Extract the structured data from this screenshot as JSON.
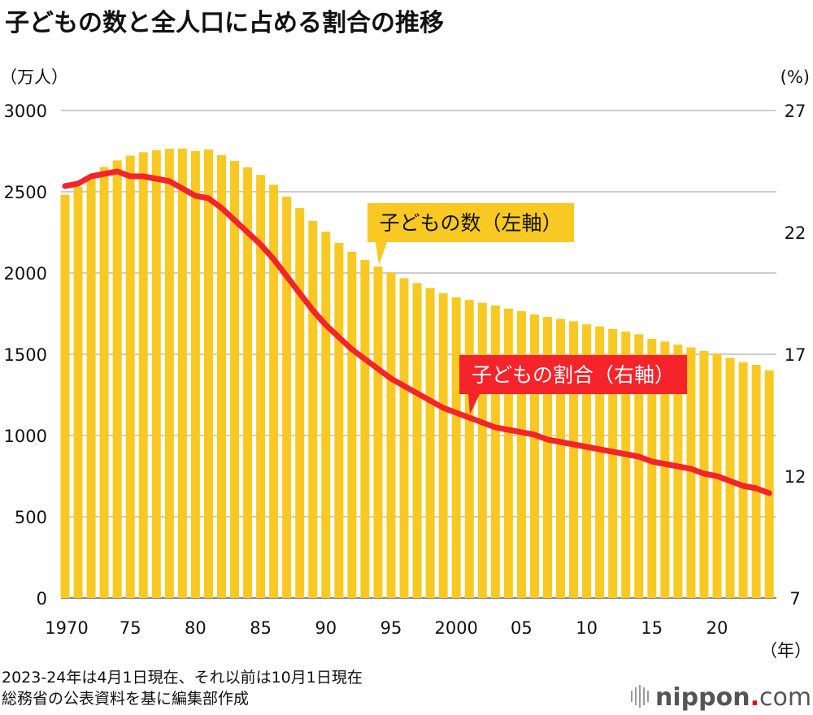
{
  "chart_data": {
    "type": "bar+line",
    "title": "子どもの数と全人口に占める割合の推移",
    "left_unit": "（万人）",
    "right_unit": "(%)",
    "x_unit": "（年）",
    "left_ylim": [
      0,
      3000
    ],
    "right_ylim": [
      7,
      27
    ],
    "left_ticks": [
      "0",
      "500",
      "1000",
      "1500",
      "2000",
      "2500",
      "3000"
    ],
    "right_ticks": [
      "7",
      "12",
      "17",
      "22",
      "27"
    ],
    "x_tick_labels": [
      "1970",
      "75",
      "80",
      "85",
      "90",
      "95",
      "2000",
      "05",
      "10",
      "15",
      "20"
    ],
    "grid": true,
    "colors": {
      "bars": "#f8c923",
      "line": "#f5232a",
      "grid": "#cccccc"
    },
    "years": [
      1970,
      1971,
      1972,
      1973,
      1974,
      1975,
      1976,
      1977,
      1978,
      1979,
      1980,
      1981,
      1982,
      1983,
      1984,
      1985,
      1986,
      1987,
      1988,
      1989,
      1990,
      1991,
      1992,
      1993,
      1994,
      1995,
      1996,
      1997,
      1998,
      1999,
      2000,
      2001,
      2002,
      2003,
      2004,
      2005,
      2006,
      2007,
      2008,
      2009,
      2010,
      2011,
      2012,
      2013,
      2014,
      2015,
      2016,
      2017,
      2018,
      2019,
      2020,
      2021,
      2022,
      2023,
      2024
    ],
    "series": [
      {
        "name": "子どもの数（左軸）",
        "axis": "left",
        "type": "bar",
        "values": [
          2482,
          2531,
          2595,
          2652,
          2693,
          2722,
          2743,
          2755,
          2765,
          2766,
          2751,
          2760,
          2725,
          2690,
          2650,
          2604,
          2543,
          2470,
          2400,
          2320,
          2254,
          2185,
          2130,
          2080,
          2040,
          2003,
          1968,
          1938,
          1908,
          1876,
          1851,
          1834,
          1817,
          1800,
          1781,
          1765,
          1745,
          1730,
          1718,
          1703,
          1684,
          1671,
          1655,
          1639,
          1623,
          1595,
          1578,
          1559,
          1542,
          1521,
          1503,
          1478,
          1450,
          1435,
          1401
        ]
      },
      {
        "name": "子どもの割合（右軸）",
        "axis": "right",
        "type": "line",
        "values": [
          23.9,
          24.0,
          24.3,
          24.4,
          24.5,
          24.3,
          24.3,
          24.2,
          24.1,
          23.8,
          23.5,
          23.4,
          23.0,
          22.5,
          22.0,
          21.5,
          20.9,
          20.2,
          19.5,
          18.8,
          18.2,
          17.7,
          17.2,
          16.8,
          16.4,
          16.0,
          15.7,
          15.4,
          15.1,
          14.8,
          14.6,
          14.4,
          14.2,
          14.0,
          13.9,
          13.8,
          13.7,
          13.5,
          13.4,
          13.3,
          13.2,
          13.1,
          13.0,
          12.9,
          12.8,
          12.6,
          12.5,
          12.4,
          12.3,
          12.1,
          12.0,
          11.8,
          11.6,
          11.5,
          11.3
        ]
      }
    ]
  },
  "notes": [
    "2023-24年は4月1日現在、それ以前は10月1日現在",
    "総務省の公表資料を基に編集部作成"
  ],
  "logo": {
    "main": "nippon",
    "dot": ".",
    "suffix": "com"
  }
}
